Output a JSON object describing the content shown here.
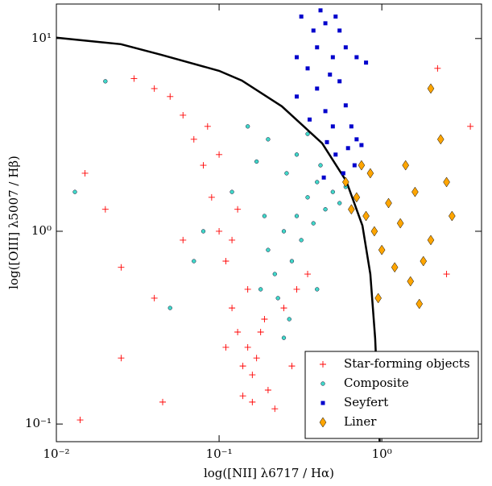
{
  "chart_data": {
    "type": "scatter",
    "x_label": "log([NII] λ6717 / Hα)",
    "y_label": "log([OIII] λ5007 / Hβ)",
    "log_x": true,
    "log_y": true,
    "xlim": [
      0.01,
      4.1
    ],
    "ylim": [
      0.081,
      15.1
    ],
    "xticks": [
      {
        "value": 0.01,
        "label": "10⁻²"
      },
      {
        "value": 0.1,
        "label": "10⁻¹"
      },
      {
        "value": 1,
        "label": "10⁰"
      }
    ],
    "yticks": [
      {
        "value": 0.1,
        "label": "10⁻¹"
      },
      {
        "value": 1,
        "label": "10⁰"
      },
      {
        "value": 10,
        "label": "10¹"
      }
    ],
    "legend": "lower right",
    "boundary": {
      "color": "#000000",
      "x": [
        0.01,
        0.0249,
        0.044,
        0.1,
        0.138,
        0.243,
        0.43,
        0.605,
        0.76,
        0.85,
        0.91,
        0.97
      ],
      "y": [
        10.1,
        9.35,
        8.24,
        6.8,
        6.05,
        4.45,
        2.86,
        1.82,
        1.07,
        0.6,
        0.278,
        0.081
      ]
    },
    "series": [
      {
        "name": "Star-forming objects",
        "marker": "plus",
        "color": "#ff0000",
        "x": [
          0.14,
          0.15,
          0.16,
          0.13,
          0.17,
          0.12,
          0.18,
          0.15,
          0.11,
          0.1,
          0.09,
          0.08,
          0.07,
          0.06,
          0.05,
          0.04,
          0.03,
          0.2,
          0.22,
          0.19,
          0.25,
          0.14,
          0.16,
          0.12,
          0.13,
          0.1,
          0.085,
          0.11,
          0.02,
          0.015,
          0.025,
          0.014,
          0.045,
          0.025,
          0.3,
          0.35,
          0.28,
          0.06,
          0.04,
          2.5,
          3.5,
          2.2
        ],
        "y": [
          0.2,
          0.25,
          0.18,
          0.3,
          0.22,
          0.4,
          0.3,
          0.5,
          0.7,
          1.0,
          1.5,
          2.2,
          3,
          4,
          5,
          5.5,
          6.2,
          0.15,
          0.12,
          0.35,
          0.4,
          0.14,
          0.13,
          0.9,
          1.3,
          2.5,
          3.5,
          0.25,
          1.3,
          2.0,
          0.65,
          0.105,
          0.13,
          0.22,
          0.5,
          0.6,
          0.2,
          0.9,
          0.45,
          0.6,
          3.5,
          7
        ]
      },
      {
        "name": "Composite",
        "marker": "circle",
        "color": "#40d8c8",
        "x": [
          0.2,
          0.25,
          0.3,
          0.22,
          0.28,
          0.35,
          0.4,
          0.18,
          0.26,
          0.45,
          0.5,
          0.3,
          0.2,
          0.15,
          0.23,
          0.32,
          0.38,
          0.55,
          0.6,
          0.27,
          0.19,
          0.12,
          0.08,
          0.05,
          0.02,
          0.013,
          0.25,
          0.4,
          0.42,
          0.35,
          0.07,
          0.17
        ],
        "y": [
          0.8,
          1.0,
          1.2,
          0.6,
          0.7,
          1.5,
          1.8,
          0.5,
          2.0,
          1.3,
          1.6,
          2.5,
          3.0,
          3.5,
          0.45,
          0.9,
          1.1,
          1.4,
          1.7,
          0.35,
          1.2,
          1.6,
          1.0,
          0.4,
          6,
          1.6,
          0.28,
          0.5,
          2.2,
          3.2,
          0.7,
          2.3
        ]
      },
      {
        "name": "Seyfert",
        "marker": "square",
        "color": "#0000cc",
        "x": [
          0.3,
          0.35,
          0.4,
          0.45,
          0.5,
          0.55,
          0.6,
          0.65,
          0.7,
          0.5,
          0.45,
          0.4,
          0.38,
          0.32,
          0.42,
          0.55,
          0.6,
          0.75,
          0.68,
          0.58,
          0.52,
          0.36,
          0.48,
          0.52,
          0.7,
          0.8,
          0.3,
          0.62,
          0.46,
          0.44
        ],
        "y": [
          5,
          7,
          9,
          12,
          8,
          6,
          4.5,
          3.5,
          3,
          3.5,
          4.2,
          5.5,
          11,
          13,
          14,
          11,
          9,
          2.8,
          2.2,
          2.0,
          2.5,
          3.8,
          6.5,
          13,
          8,
          7.5,
          8,
          2.7,
          2.9,
          1.9
        ]
      },
      {
        "name": "Liner",
        "marker": "diamond",
        "color": "#ffa500",
        "x": [
          0.6,
          0.7,
          0.8,
          0.9,
          1.0,
          1.1,
          1.3,
          0.75,
          0.65,
          0.85,
          1.2,
          1.5,
          1.4,
          1.8,
          2.0,
          2.3,
          2.0,
          1.7,
          2.5,
          0.95,
          2.7,
          1.6
        ],
        "y": [
          1.8,
          1.5,
          1.2,
          1.0,
          0.8,
          1.4,
          1.1,
          2.2,
          1.3,
          2.0,
          0.65,
          0.55,
          2.2,
          0.7,
          0.9,
          3,
          5.5,
          0.42,
          1.8,
          0.45,
          1.2,
          1.6
        ]
      }
    ]
  }
}
